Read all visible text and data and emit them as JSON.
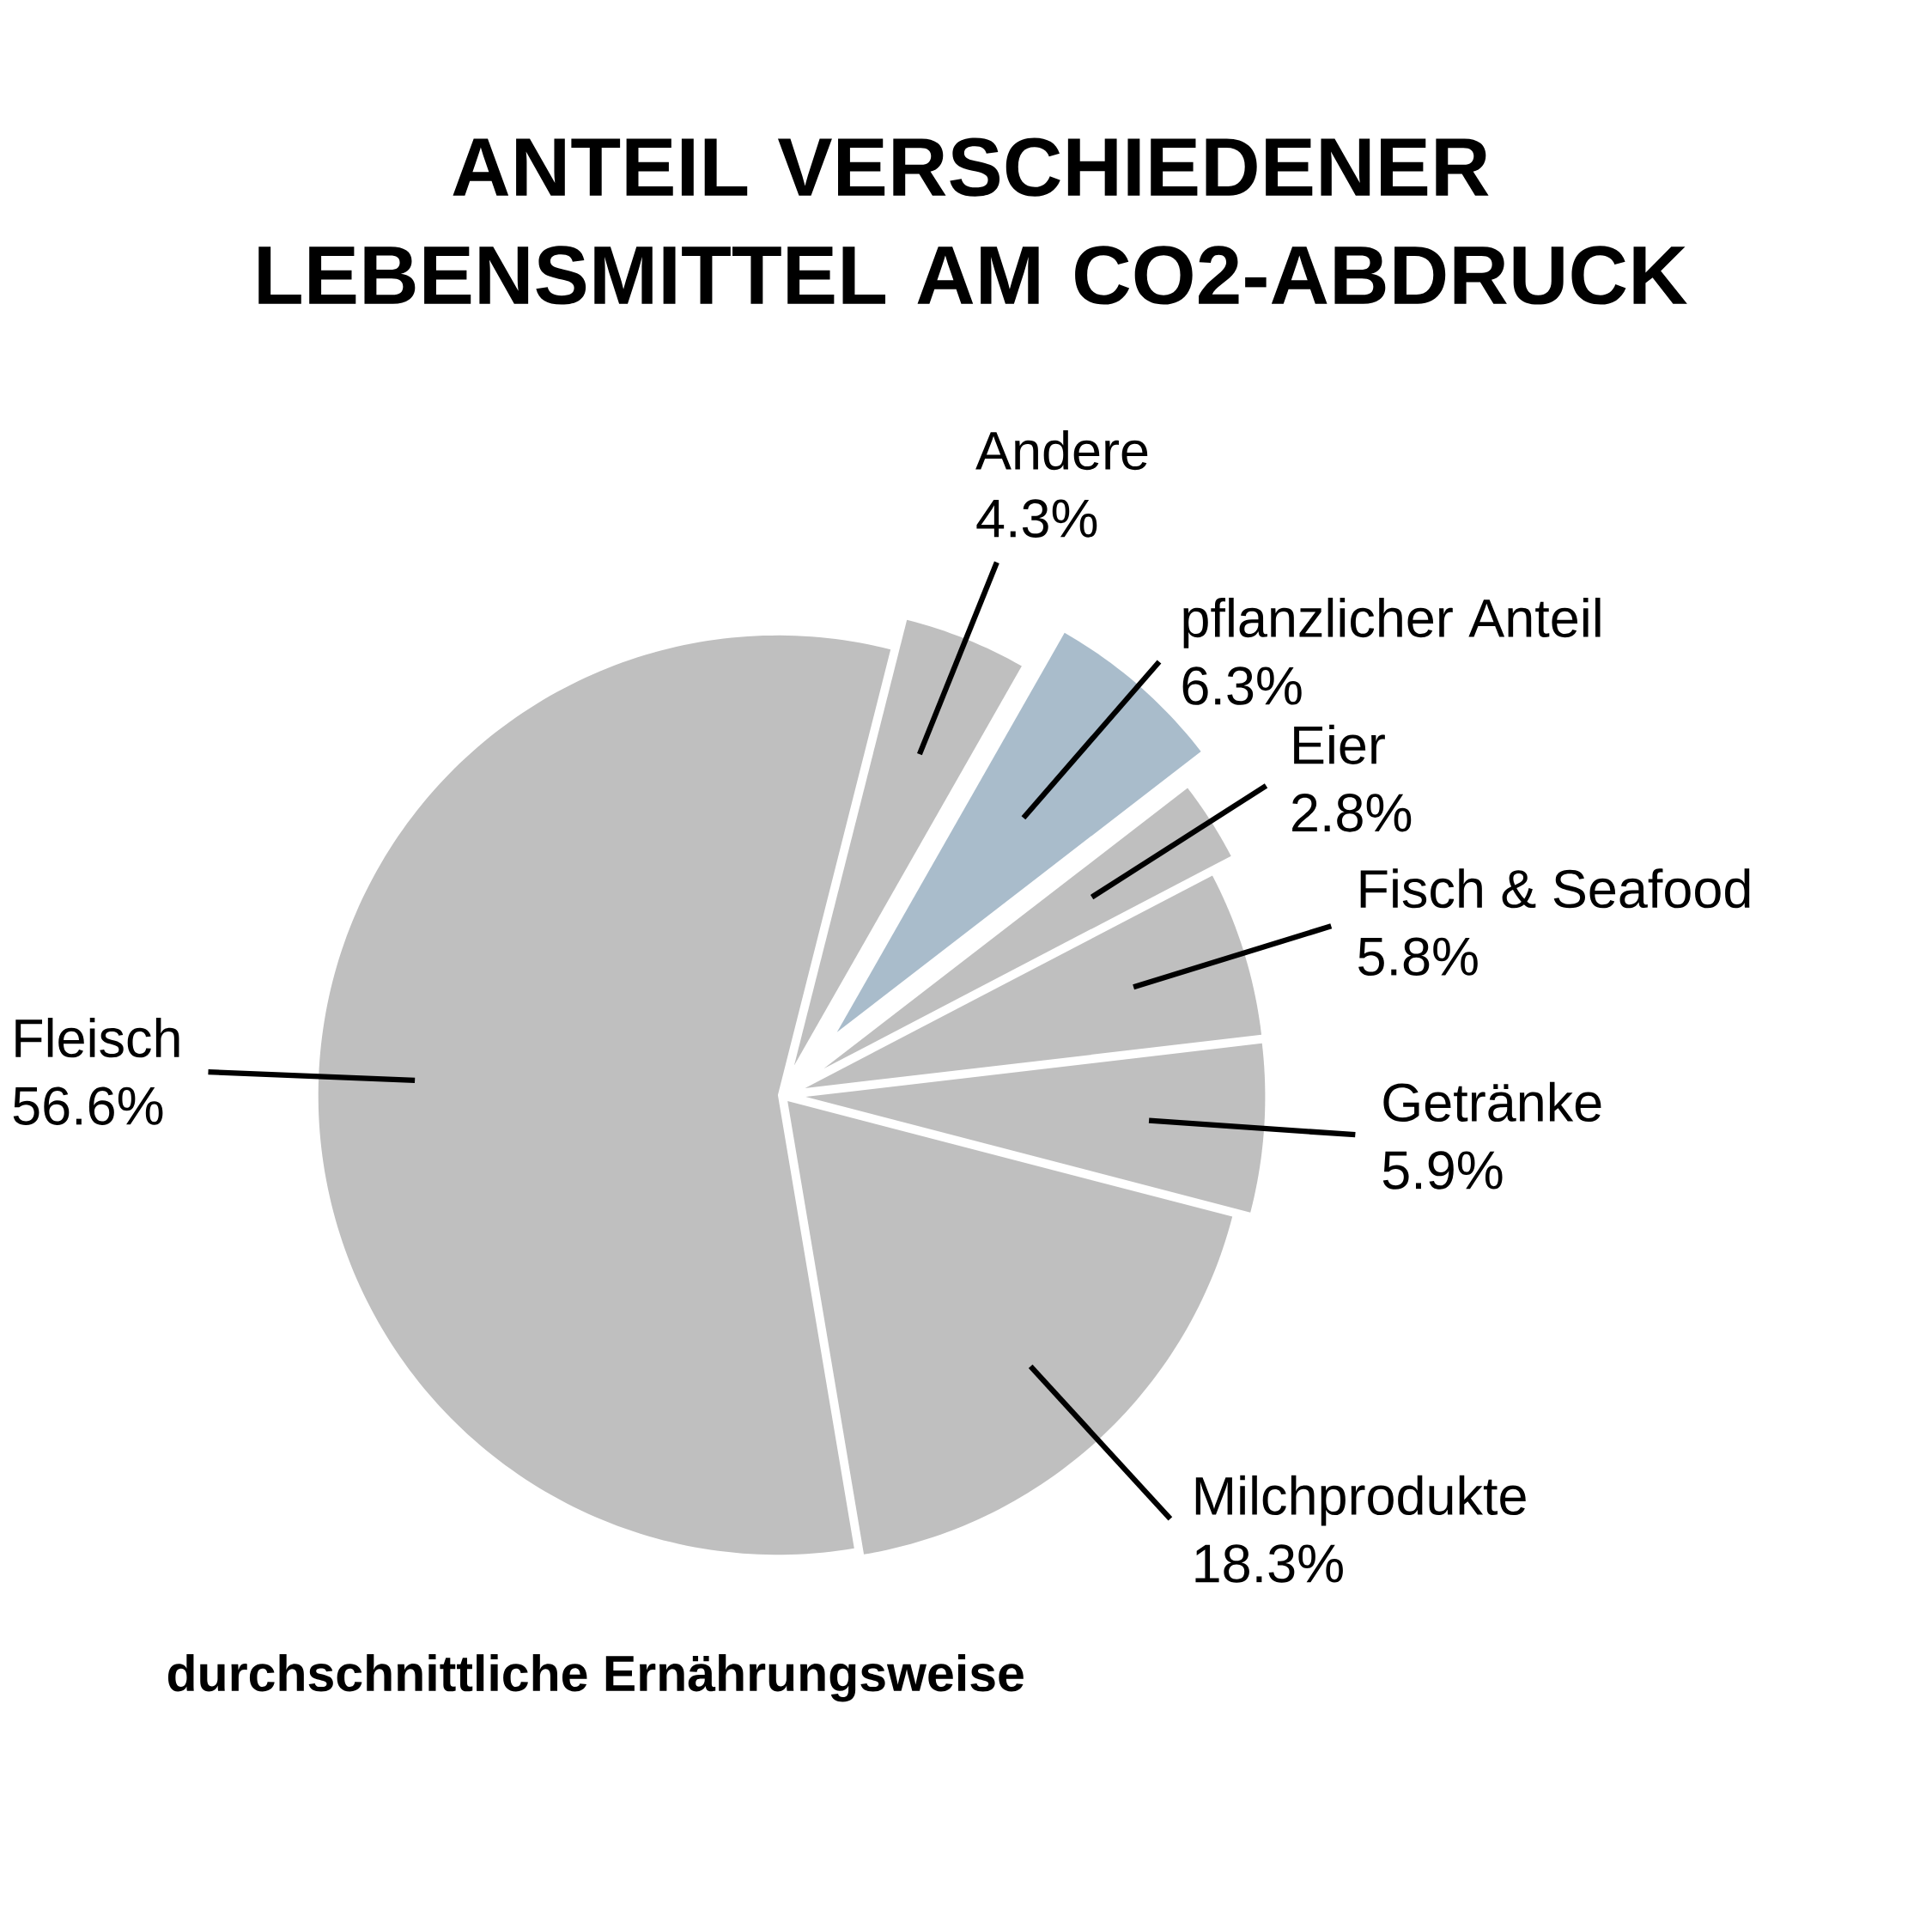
{
  "chart_data": {
    "type": "pie",
    "title": "ANTEIL VERSCHIEDENER LEBENSMITTEL AM CO2-ABDRUCK",
    "subtitle": "durchschnittliche Ernährungsweise",
    "categories": [
      "Andere",
      "pflanzlicher Anteil",
      "Eier",
      "Fisch & Seafood",
      "Getränke",
      "Milchprodukte",
      "Fleisch"
    ],
    "values": [
      4.3,
      6.3,
      2.8,
      5.8,
      5.9,
      18.3,
      56.6
    ],
    "value_labels": [
      "4.3%",
      "6.3%",
      "2.8%",
      "5.8%",
      "5.9%",
      "18.3%",
      "56.6%"
    ],
    "colors": [
      "#bfbfbf",
      "#a9bccb",
      "#bfbfbf",
      "#bfbfbf",
      "#bfbfbf",
      "#bfbfbf",
      "#bfbfbf"
    ]
  }
}
